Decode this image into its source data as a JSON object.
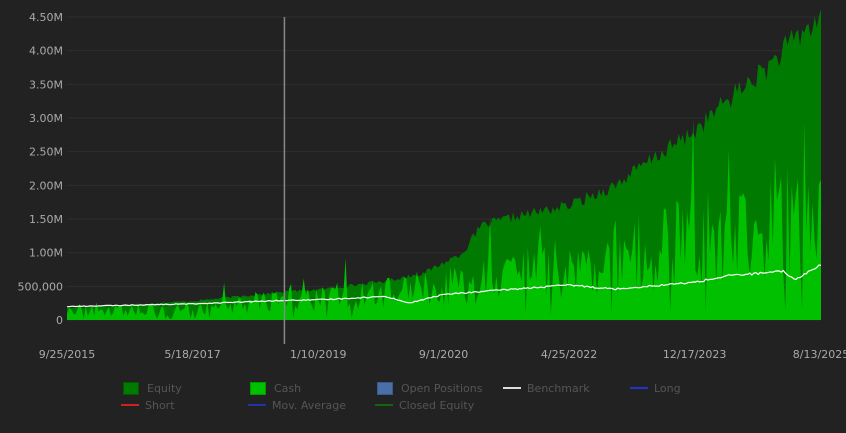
{
  "chart_data": {
    "type": "area",
    "title": "",
    "xlabel": "",
    "ylabel": "",
    "ylim": [
      -250000,
      4500000
    ],
    "y_ticks": [
      {
        "value": 0,
        "label": "0"
      },
      {
        "value": 500000,
        "label": "500,000"
      },
      {
        "value": 1000000,
        "label": "1.00M"
      },
      {
        "value": 1500000,
        "label": "1.50M"
      },
      {
        "value": 2000000,
        "label": "2.00M"
      },
      {
        "value": 2500000,
        "label": "2.50M"
      },
      {
        "value": 3000000,
        "label": "3.00M"
      },
      {
        "value": 3500000,
        "label": "3.50M"
      },
      {
        "value": 4000000,
        "label": "4.00M"
      },
      {
        "value": 4500000,
        "label": "4.50M"
      }
    ],
    "x_ticks": [
      "9/25/2015",
      "5/18/2017",
      "1/10/2019",
      "9/1/2020",
      "4/25/2022",
      "12/17/2023",
      "8/13/2025"
    ],
    "x_range": [
      "9/25/2015",
      "8/13/2025"
    ],
    "marker_line_date": "8/1/2018",
    "grid": true,
    "legend_position": "bottom",
    "series": [
      {
        "name": "Equity",
        "type": "area",
        "color": "#007a00",
        "x": [
          "9/25/2015",
          "5/18/2017",
          "8/1/2018",
          "1/10/2019",
          "12/1/2019",
          "6/1/2020",
          "9/1/2020",
          "12/1/2020",
          "3/1/2021",
          "9/1/2021",
          "4/25/2022",
          "12/1/2022",
          "6/1/2023",
          "12/17/2023",
          "6/1/2024",
          "12/1/2024",
          "3/1/2025",
          "8/13/2025"
        ],
        "values": [
          180000,
          280000,
          420000,
          450000,
          580000,
          700000,
          850000,
          1000000,
          1400000,
          1550000,
          1700000,
          2000000,
          2400000,
          2800000,
          3300000,
          3750000,
          4050000,
          4500000
        ]
      },
      {
        "name": "Cash",
        "type": "area",
        "color": "#00c000",
        "x": [
          "9/25/2015",
          "5/18/2017",
          "8/1/2018",
          "1/10/2019",
          "9/1/2020",
          "4/25/2022",
          "12/17/2023",
          "8/13/2025"
        ],
        "values": [
          120000,
          180000,
          300000,
          320000,
          500000,
          800000,
          1200000,
          1600000
        ]
      },
      {
        "name": "Benchmark",
        "type": "line",
        "color": "#ffffff",
        "x": [
          "9/25/2015",
          "5/18/2017",
          "8/1/2018",
          "1/10/2019",
          "12/1/2019",
          "3/20/2020",
          "9/1/2020",
          "4/25/2022",
          "12/1/2022",
          "12/17/2023",
          "6/1/2024",
          "2/15/2025",
          "4/10/2025",
          "8/13/2025"
        ],
        "values": [
          200000,
          240000,
          290000,
          300000,
          350000,
          250000,
          380000,
          520000,
          460000,
          560000,
          660000,
          720000,
          600000,
          820000
        ]
      }
    ]
  },
  "legend": {
    "items": [
      {
        "label": "Equity",
        "kind": "box",
        "color": "#007a00",
        "border": "#005a00"
      },
      {
        "label": "Cash",
        "kind": "box",
        "color": "#00c000",
        "border": "#009a00"
      },
      {
        "label": "Open Positions",
        "kind": "box",
        "color": "#4a6ea8",
        "border": "#3a5888"
      },
      {
        "label": "Benchmark",
        "kind": "line",
        "color": "#dddddd"
      },
      {
        "label": "Long",
        "kind": "line",
        "color": "#2233cc"
      },
      {
        "label": "Short",
        "kind": "line",
        "color": "#cc2222"
      },
      {
        "label": "Mov. Average",
        "kind": "line",
        "color": "#2233aa"
      },
      {
        "label": "Closed Equity",
        "kind": "line",
        "color": "#116611"
      }
    ]
  },
  "colors": {
    "background": "#222222",
    "grid": "#2e2e2e",
    "axis_text": "#aaaaaa",
    "marker_line": "#888888"
  }
}
